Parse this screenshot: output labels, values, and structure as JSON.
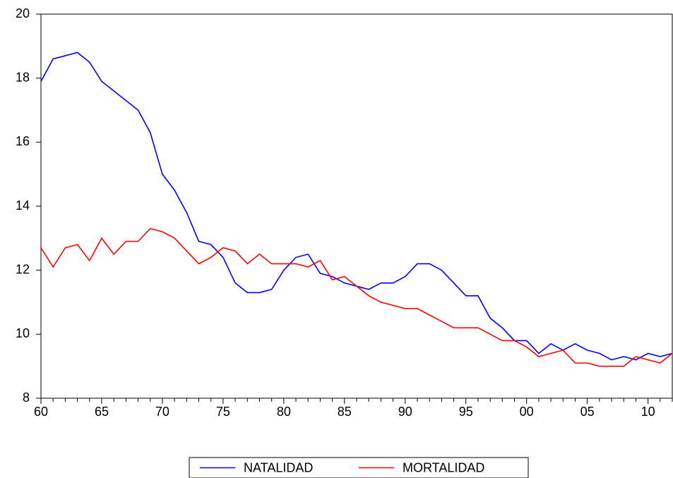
{
  "chart_data": {
    "type": "line",
    "categories": [
      "60",
      null,
      null,
      null,
      null,
      "65",
      null,
      null,
      null,
      null,
      "70",
      null,
      null,
      null,
      null,
      "75",
      null,
      null,
      null,
      null,
      "80",
      null,
      null,
      null,
      null,
      "85",
      null,
      null,
      null,
      null,
      "90",
      null,
      null,
      null,
      null,
      "95",
      null,
      null,
      null,
      null,
      "00",
      null,
      null,
      null,
      null,
      "05",
      null,
      null,
      null,
      null,
      "10",
      null,
      null
    ],
    "series": [
      {
        "name": "NATALIDAD",
        "color": "#0000ff",
        "values": [
          17.9,
          18.6,
          18.7,
          18.8,
          18.5,
          17.9,
          17.6,
          17.3,
          17.0,
          16.3,
          15.0,
          14.5,
          13.8,
          12.9,
          12.8,
          12.4,
          11.6,
          11.3,
          11.3,
          11.4,
          12.0,
          12.4,
          12.5,
          11.9,
          11.8,
          11.6,
          11.5,
          11.4,
          11.6,
          11.6,
          11.8,
          12.2,
          12.2,
          12.0,
          11.6,
          11.2,
          11.2,
          10.5,
          10.2,
          9.8,
          9.8,
          9.4,
          9.7,
          9.5,
          9.7,
          9.5,
          9.4,
          9.2,
          9.3,
          9.2,
          9.4,
          9.3,
          9.4
        ]
      },
      {
        "name": "MORTALIDAD",
        "color": "#ff0000",
        "values": [
          12.7,
          12.1,
          12.7,
          12.8,
          12.3,
          13.0,
          12.5,
          12.9,
          12.9,
          13.3,
          13.2,
          13.0,
          12.6,
          12.2,
          12.4,
          12.7,
          12.6,
          12.2,
          12.5,
          12.2,
          12.2,
          12.2,
          12.1,
          12.3,
          11.7,
          11.8,
          11.5,
          11.2,
          11.0,
          10.9,
          10.8,
          10.8,
          10.6,
          10.4,
          10.2,
          10.2,
          10.2,
          10.0,
          9.8,
          9.8,
          9.6,
          9.3,
          9.4,
          9.5,
          9.1,
          9.1,
          9.0,
          9.0,
          9.0,
          9.3,
          9.2,
          9.1,
          9.4
        ]
      }
    ],
    "ylim": [
      8,
      20
    ],
    "yticks": [
      8,
      10,
      12,
      14,
      16,
      18,
      20
    ],
    "legend": "bottom"
  }
}
